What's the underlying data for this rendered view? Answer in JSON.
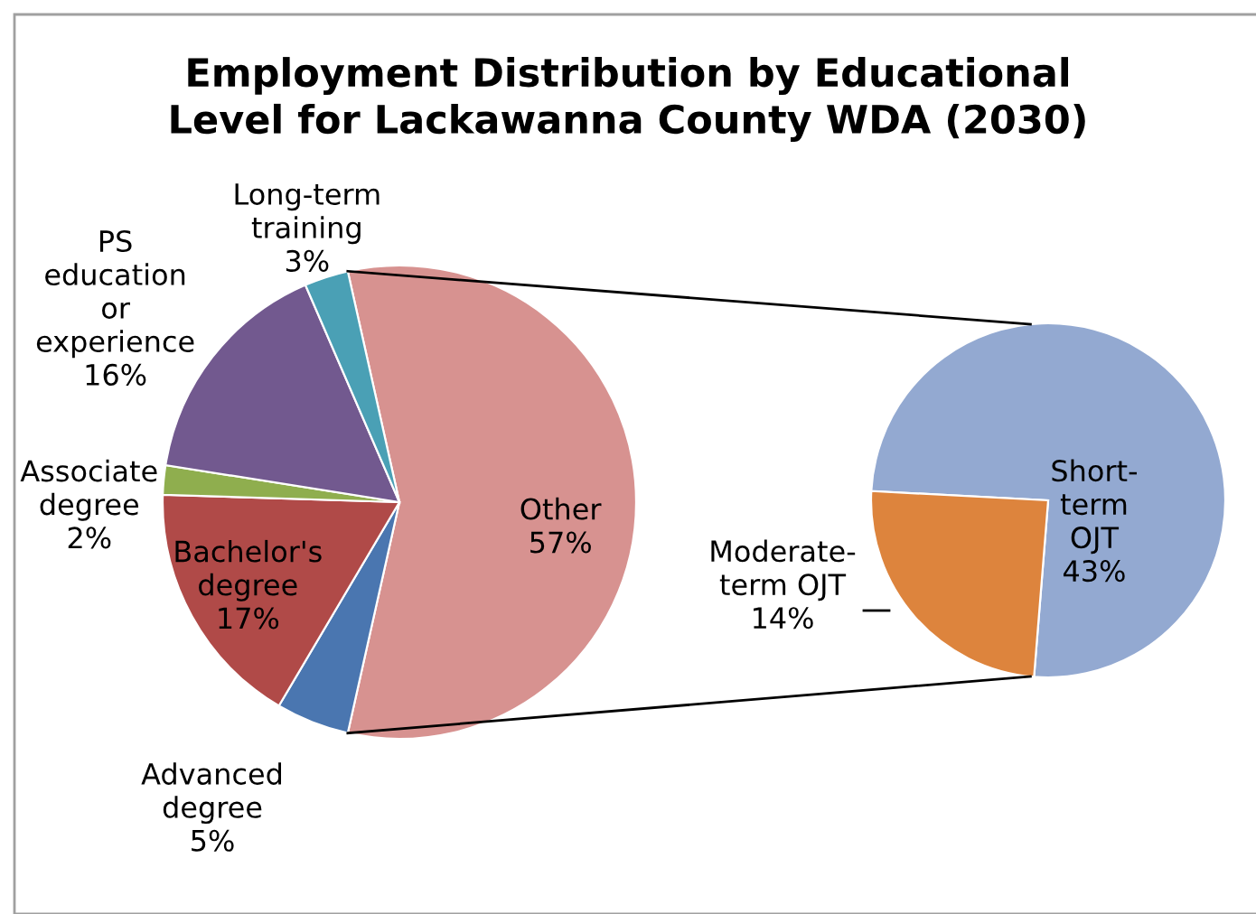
{
  "chart_data": [
    {
      "type": "pie",
      "title": "Employment Distribution by Educational Level for Lackawanna County WDA (2030)",
      "categories": [
        "Other",
        "Advanced degree",
        "Bachelor's degree",
        "Associate degree",
        "PS education or experience",
        "Long-term training"
      ],
      "values": [
        57,
        5,
        17,
        2,
        16,
        3
      ],
      "value_labels": [
        "57%",
        "5%",
        "17%",
        "2%",
        "16%",
        "3%"
      ],
      "colors": [
        "#d79290",
        "#4a76b0",
        "#b04a48",
        "#8fae4e",
        "#72598f",
        "#4aa0b5"
      ],
      "legend": false
    },
    {
      "type": "pie",
      "categories": [
        "Short-term OJT",
        "Moderate-term OJT"
      ],
      "values": [
        43,
        14
      ],
      "value_labels": [
        "43%",
        "14%"
      ],
      "colors": [
        "#93a9d1",
        "#dd843d"
      ],
      "legend": false
    }
  ]
}
